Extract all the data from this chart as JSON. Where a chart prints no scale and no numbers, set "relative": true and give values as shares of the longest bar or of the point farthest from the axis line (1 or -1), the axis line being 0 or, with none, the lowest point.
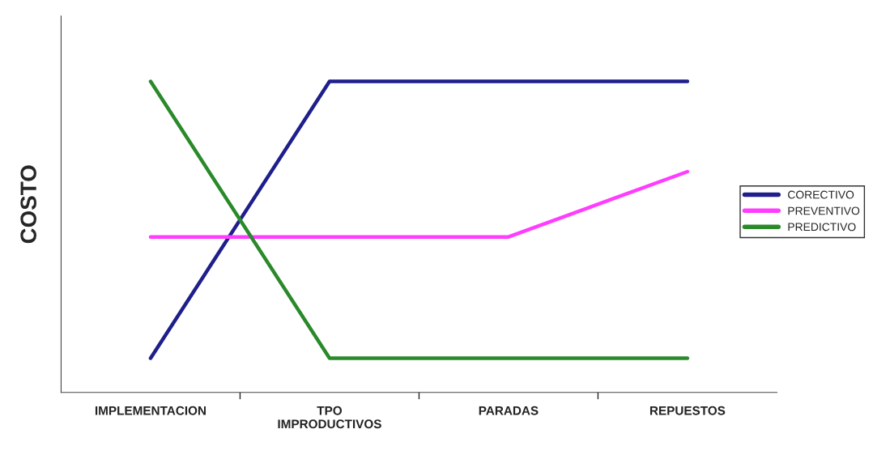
{
  "chart_data": {
    "type": "line",
    "relative": true,
    "ylabel": "COSTO",
    "categories": [
      "IMPLEMENTACION",
      "TPO\nIMPRODUCTIVOS",
      "PARADAS",
      "REPUESTOS"
    ],
    "series": [
      {
        "name": "CORECTIVO",
        "color": "#1f1f8c",
        "values": [
          0.11,
          1,
          1,
          1
        ]
      },
      {
        "name": "PREVENTIVO",
        "color": "#ff3cff",
        "values": [
          0.5,
          0.5,
          0.5,
          0.71
        ]
      },
      {
        "name": "PREDICTIVO",
        "color": "#2a8a2a",
        "values": [
          1,
          0.11,
          0.11,
          0.11
        ]
      }
    ],
    "legend": "right",
    "grid": false,
    "marker": "none",
    "line_style": "solid"
  }
}
